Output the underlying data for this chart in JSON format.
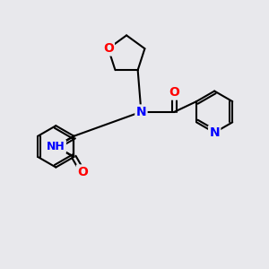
{
  "bg_color": "#e8e8ec",
  "bond_color": "#000000",
  "atom_colors": {
    "N": "#0000ff",
    "O": "#ff0000",
    "C": "#000000"
  },
  "font_size": 9,
  "line_width": 1.5
}
